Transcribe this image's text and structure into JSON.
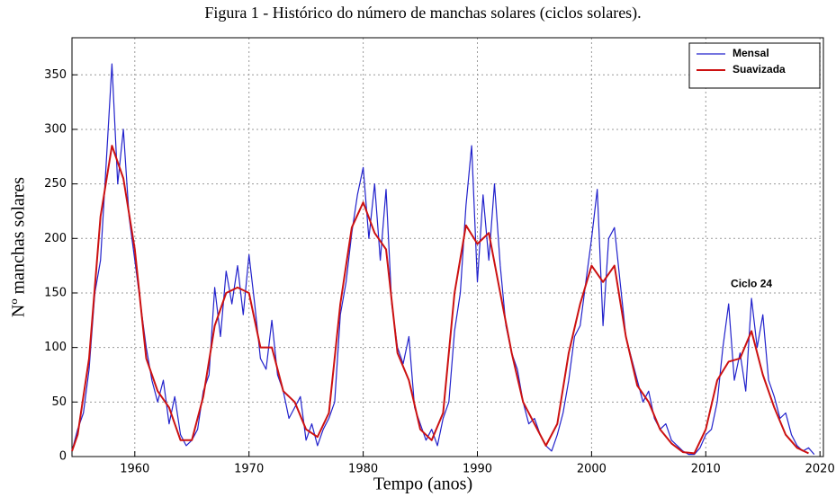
{
  "chart_data": {
    "type": "line",
    "title": "Figura 1 - Histórico do número de manchas solares (ciclos solares).",
    "x_label": "Tempo (anos)",
    "y_label": "Nº manchas solares",
    "xlim": [
      1954.5,
      2020.3
    ],
    "ylim": [
      0,
      384
    ],
    "xticks": [
      1960,
      1970,
      1980,
      1990,
      2000,
      2010,
      2020
    ],
    "yticks": [
      0,
      50,
      100,
      150,
      200,
      250,
      300,
      350
    ],
    "grid": true,
    "legend": "upper right",
    "annotations": [
      {
        "text": "Ciclo 24",
        "x": 2014,
        "y": 158
      }
    ],
    "series": [
      {
        "name": "Mensal",
        "color": "#2222cc",
        "width": 1.2,
        "x": [
          1954.5,
          1955,
          1955.5,
          1956,
          1956.5,
          1957,
          1957.5,
          1958,
          1958.5,
          1959,
          1959.5,
          1960,
          1960.5,
          1961,
          1961.5,
          1962,
          1962.5,
          1963,
          1963.5,
          1964,
          1964.5,
          1965,
          1965.5,
          1966,
          1966.5,
          1967,
          1967.5,
          1968,
          1968.5,
          1969,
          1969.5,
          1970,
          1970.5,
          1971,
          1971.5,
          1972,
          1972.5,
          1973,
          1973.5,
          1974,
          1974.5,
          1975,
          1975.5,
          1976,
          1976.5,
          1977,
          1977.5,
          1978,
          1978.5,
          1979,
          1979.5,
          1980,
          1980.5,
          1981,
          1981.5,
          1982,
          1982.5,
          1983,
          1983.5,
          1984,
          1984.5,
          1985,
          1985.5,
          1986,
          1986.5,
          1987,
          1987.5,
          1988,
          1988.5,
          1989,
          1989.5,
          1990,
          1990.5,
          1991,
          1991.5,
          1992,
          1992.5,
          1993,
          1993.5,
          1994,
          1994.5,
          1995,
          1995.5,
          1996,
          1996.5,
          1997,
          1997.5,
          1998,
          1998.5,
          1999,
          1999.5,
          2000,
          2000.5,
          2001,
          2001.5,
          2002,
          2002.5,
          2003,
          2003.5,
          2004,
          2004.5,
          2005,
          2005.5,
          2006,
          2006.5,
          2007,
          2007.5,
          2008,
          2008.5,
          2009,
          2009.5,
          2010,
          2010.5,
          2011,
          2011.5,
          2012,
          2012.5,
          2013,
          2013.5,
          2014,
          2014.5,
          2015,
          2015.5,
          2016,
          2016.5,
          2017,
          2017.5,
          2018,
          2018.5,
          2019,
          2019.5
        ],
        "values": [
          5,
          25,
          40,
          80,
          150,
          180,
          270,
          360,
          250,
          300,
          220,
          180,
          140,
          100,
          70,
          50,
          70,
          30,
          55,
          20,
          10,
          15,
          25,
          60,
          75,
          155,
          110,
          170,
          140,
          175,
          130,
          185,
          140,
          90,
          80,
          125,
          75,
          60,
          35,
          45,
          55,
          15,
          30,
          10,
          25,
          35,
          50,
          130,
          160,
          205,
          240,
          265,
          200,
          250,
          180,
          245,
          140,
          100,
          85,
          110,
          45,
          30,
          15,
          25,
          10,
          35,
          50,
          115,
          150,
          230,
          285,
          160,
          240,
          180,
          250,
          175,
          120,
          95,
          80,
          50,
          30,
          35,
          20,
          10,
          5,
          20,
          40,
          70,
          110,
          120,
          160,
          200,
          245,
          120,
          200,
          210,
          160,
          110,
          90,
          70,
          50,
          60,
          35,
          25,
          30,
          15,
          10,
          5,
          2,
          2,
          8,
          20,
          25,
          50,
          100,
          140,
          70,
          95,
          60,
          145,
          100,
          130,
          70,
          55,
          35,
          40,
          20,
          10,
          5,
          8,
          2
        ]
      },
      {
        "name": "Suavizada",
        "color": "#cc1111",
        "width": 2,
        "x": [
          1954.5,
          1955,
          1956,
          1957,
          1958,
          1959,
          1960,
          1961,
          1962,
          1963,
          1964,
          1965,
          1966,
          1967,
          1968,
          1969,
          1970,
          1971,
          1972,
          1973,
          1974,
          1975,
          1976,
          1977,
          1978,
          1979,
          1980,
          1981,
          1982,
          1983,
          1984,
          1985,
          1986,
          1987,
          1988,
          1989,
          1990,
          1991,
          1992,
          1993,
          1994,
          1995,
          1996,
          1997,
          1998,
          1999,
          2000,
          2001,
          2002,
          2003,
          2004,
          2005,
          2006,
          2007,
          2008,
          2009,
          2010,
          2011,
          2012,
          2013,
          2014,
          2015,
          2016,
          2017,
          2018,
          2019
        ],
        "values": [
          5,
          20,
          90,
          220,
          285,
          255,
          190,
          90,
          60,
          45,
          15,
          15,
          55,
          120,
          150,
          155,
          150,
          100,
          100,
          60,
          50,
          25,
          18,
          40,
          140,
          210,
          233,
          205,
          190,
          95,
          70,
          25,
          15,
          40,
          150,
          212,
          195,
          205,
          150,
          95,
          50,
          30,
          10,
          30,
          95,
          140,
          175,
          160,
          175,
          110,
          65,
          50,
          25,
          12,
          4,
          3,
          25,
          70,
          87,
          90,
          115,
          75,
          45,
          20,
          8,
          3
        ]
      }
    ]
  }
}
